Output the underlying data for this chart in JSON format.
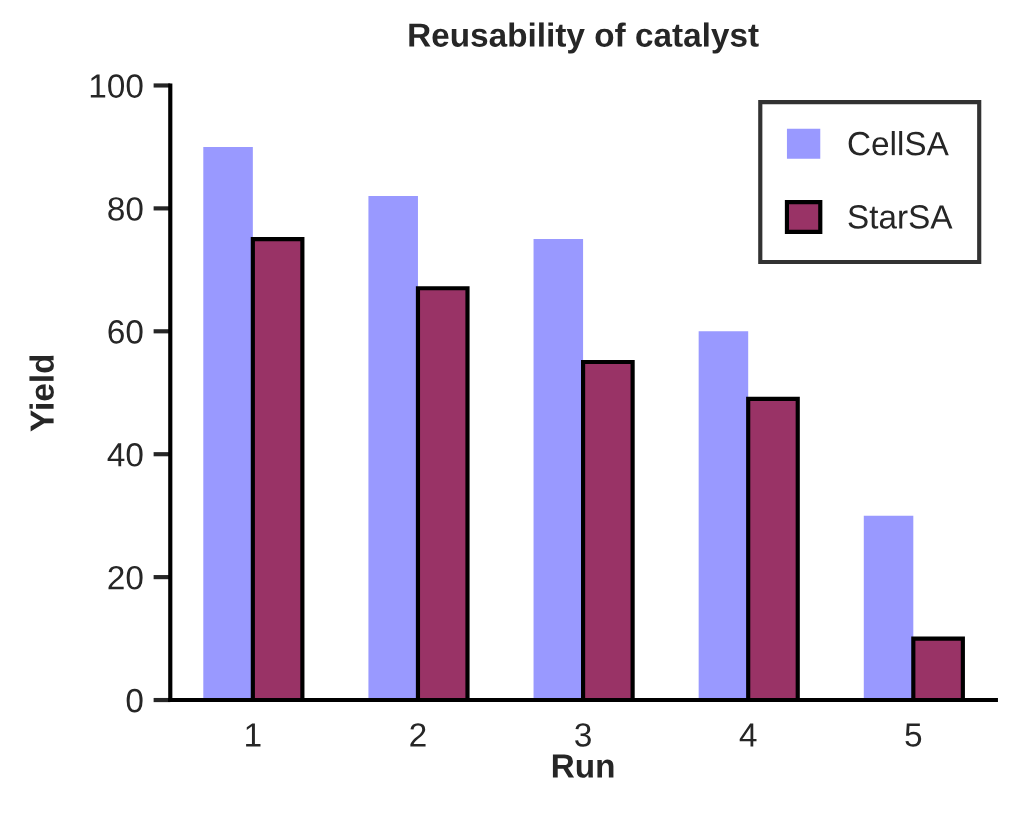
{
  "chart_data": {
    "type": "bar",
    "title": "Reusability of catalyst",
    "xlabel": "Run",
    "ylabel": "Yield",
    "categories": [
      "1",
      "2",
      "3",
      "4",
      "5"
    ],
    "series": [
      {
        "name": "CellSA",
        "color": "#9999ff",
        "values": [
          90,
          82,
          75,
          60,
          30
        ]
      },
      {
        "name": "StarSA",
        "color": "#993366",
        "values": [
          75,
          67,
          55,
          49,
          10
        ]
      }
    ],
    "ylim": [
      0,
      100
    ],
    "yticks": [
      0,
      20,
      40,
      60,
      80,
      100
    ],
    "grid": false,
    "legend": "top right"
  }
}
